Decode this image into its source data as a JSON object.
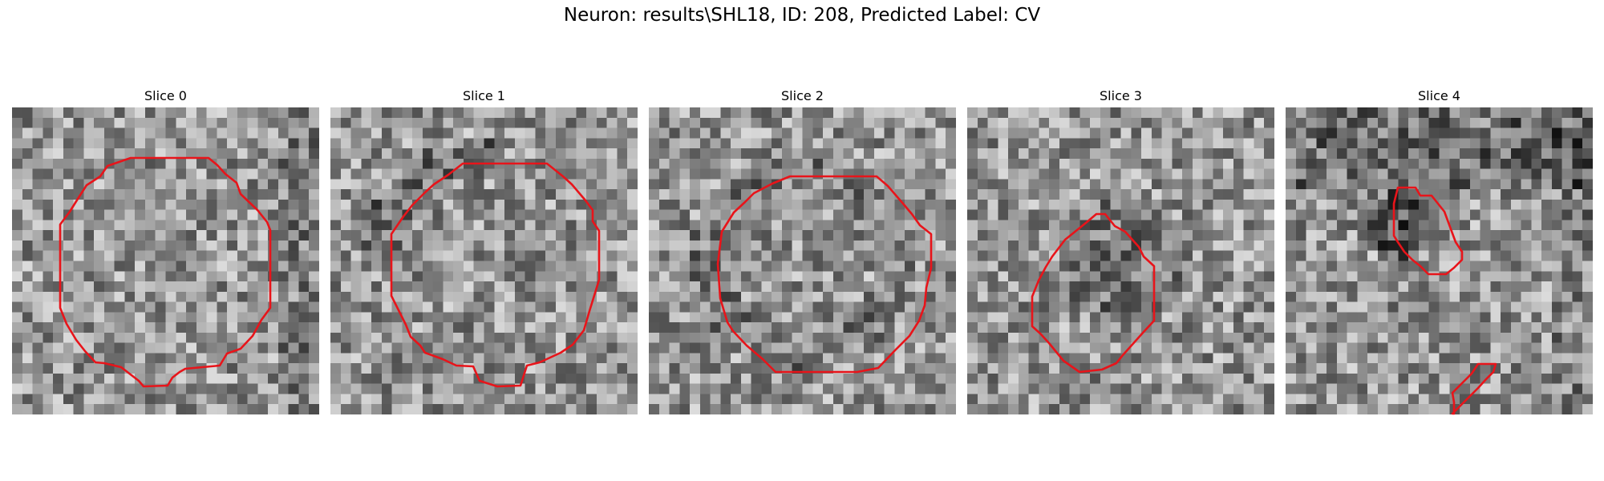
{
  "figure": {
    "title": "Neuron: results\\SHL18, ID: 208, Predicted Label: CV"
  },
  "slices": [
    {
      "title": "Slice 0"
    },
    {
      "title": "Slice 1"
    },
    {
      "title": "Slice 2"
    },
    {
      "title": "Slice 3"
    },
    {
      "title": "Slice 4"
    }
  ],
  "colors": {
    "contour": "#e8141a",
    "background": "#ffffff",
    "colormap": "grayscale"
  },
  "image": {
    "grid_size": 30,
    "colormap": "gray"
  }
}
